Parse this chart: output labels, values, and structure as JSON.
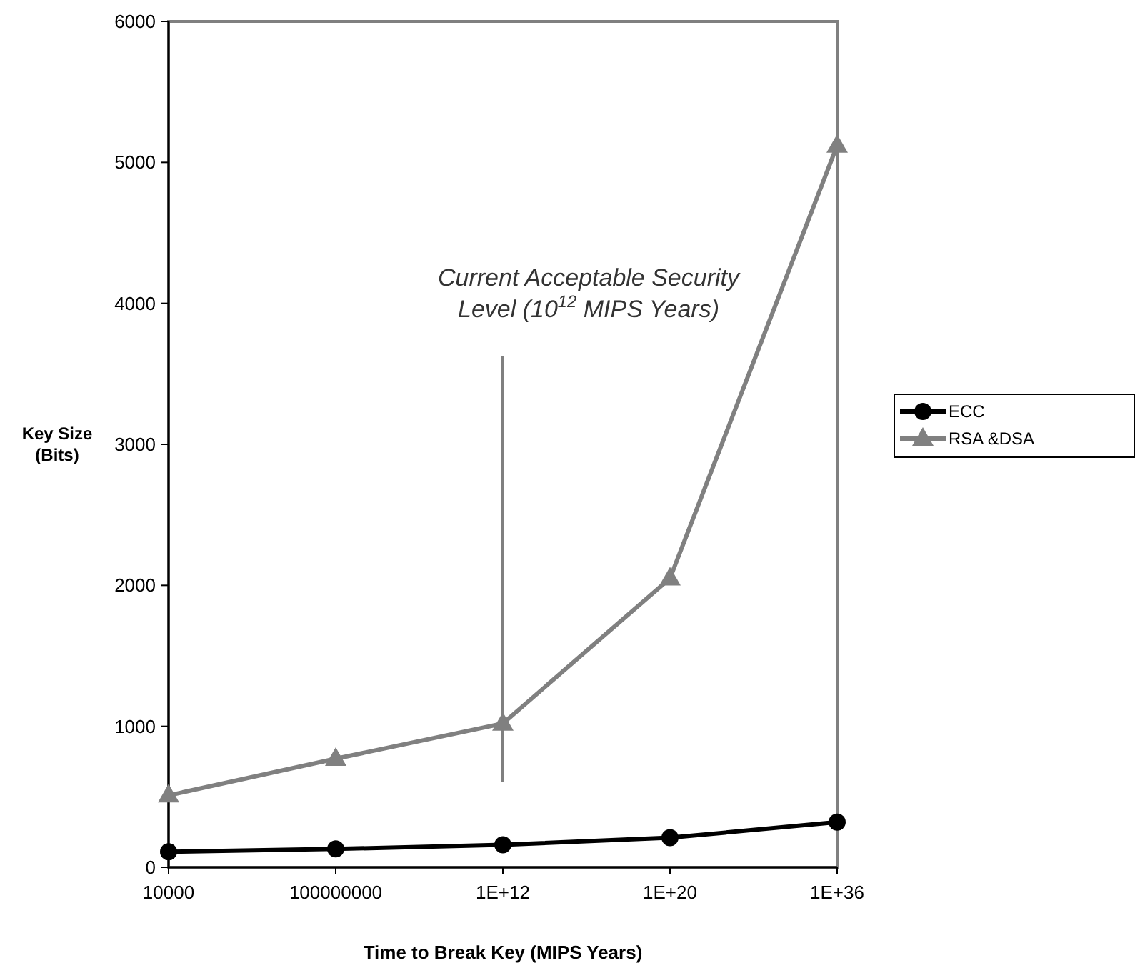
{
  "chart_data": {
    "type": "line",
    "xlabel": "Time to Break Key (MIPS Years)",
    "ylabel": "Key Size\n(Bits)",
    "categories": [
      "10000",
      "100000000",
      "1E+12",
      "1E+20",
      "1E+36"
    ],
    "series": [
      {
        "name": "ECC",
        "color": "#000000",
        "marker": "circle",
        "values": [
          110,
          130,
          160,
          210,
          320
        ]
      },
      {
        "name": "RSA &DSA",
        "color": "#808080",
        "marker": "triangle",
        "values": [
          510,
          770,
          1020,
          2050,
          5120
        ]
      }
    ],
    "ylim": [
      0,
      6000
    ],
    "yticks": [
      0,
      1000,
      2000,
      3000,
      4000,
      5000,
      6000
    ],
    "ref_lines": [
      {
        "axis": "x",
        "value": "1E+12",
        "label": "Current Acceptable Security Level (10$^{12}$ MIPS Years)",
        "color": "#808080"
      }
    ],
    "legend": "right"
  }
}
